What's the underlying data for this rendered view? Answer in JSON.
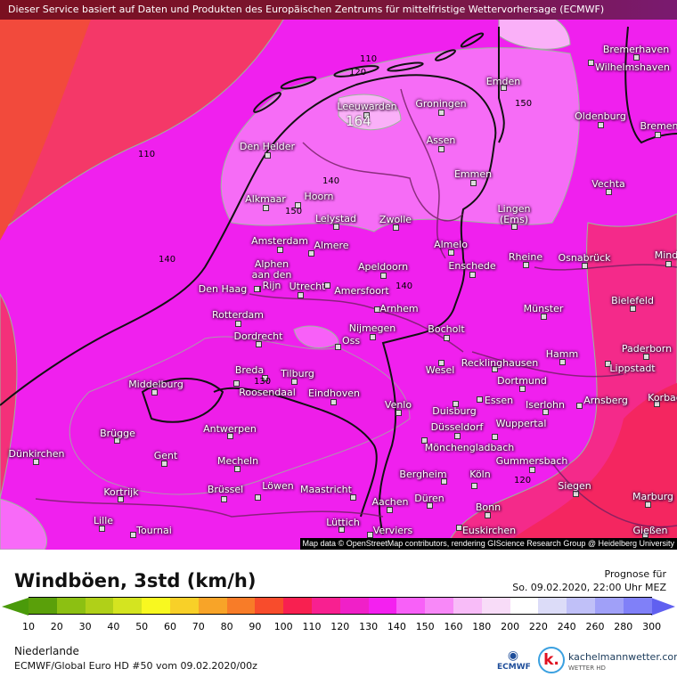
{
  "banner": "Dieser Service basiert auf Daten und Produkten des Europäischen Zentrums für mittelfristige Wettervorhersage (ECMWF)",
  "map": {
    "credit": "Map data © OpenStreetMap contributors, rendering GIScience Research Group @ Heidelberg University",
    "max_label": "164",
    "cities": [
      "Bremerhaven",
      "Wilhelmshaven",
      "Emden",
      "Leeuwarden",
      "Groningen",
      "Den Helder",
      "Oldenburg",
      "Bremen",
      "Assen",
      "Emmen",
      "Vechta",
      "Alkmaar",
      "Hoorn",
      "Lelystad",
      "Zwolle",
      "Lingen\n(Ems)",
      "Amsterdam",
      "Almere",
      "Almelo",
      "Enschede",
      "Rheine",
      "Osnabrück",
      "Mind",
      "Alphen\naan den\nRijn",
      "Utrecht",
      "Amersfoort",
      "Apeldoorn",
      "Den Haag",
      "Arnhem",
      "Münster",
      "Bielefeld",
      "Rotterdam",
      "Nijmegen",
      "Bocholt",
      "Dordrecht",
      "Oss",
      "Hamm",
      "Paderborn",
      "Recklinghausen",
      "Wesel",
      "Lippstadt",
      "Breda",
      "Tilburg",
      "Middelburg",
      "Roosendaal",
      "Dortmund",
      "Eindhoven",
      "Venlo",
      "Essen",
      "Duisburg",
      "Iserlohn",
      "Arnsberg",
      "Korbac",
      "Antwerpen",
      "Brügge",
      "Düsseldorf",
      "Wuppertal",
      "Mönchengladbach",
      "Dünkirchen",
      "Gent",
      "Mecheln",
      "Gummersbach",
      "Bergheim",
      "Köln",
      "Kortrijk",
      "Brüssel",
      "Löwen",
      "Maastricht",
      "Siegen",
      "Aachen",
      "Düren",
      "Marburg",
      "Bonn",
      "Lille",
      "Tournai",
      "Lüttich",
      "Verviers",
      "Euskirchen",
      "Gießen"
    ],
    "contour_labels": [
      "110",
      "110",
      "120",
      "150",
      "140",
      "150",
      "140",
      "140",
      "130",
      "120"
    ]
  },
  "title": "Windböen, 3std (km/h)",
  "forecast": {
    "label": "Prognose für",
    "datetime": "So. 09.02.2020, 22:00 Uhr MEZ"
  },
  "legend": {
    "colors": [
      "#5aa00a",
      "#8cc012",
      "#b0d018",
      "#d4e420",
      "#f8f820",
      "#f8d028",
      "#f8a428",
      "#f87c28",
      "#f84c2c",
      "#f82050",
      "#f82090",
      "#f020c8",
      "#f420f0",
      "#f860f8",
      "#f888f8",
      "#f8bcf8",
      "#f8dcf8",
      "#ffffff",
      "#dcdcf8",
      "#c0c0f8",
      "#a0a0f8",
      "#8080f8"
    ],
    "below_color": "#4a9a0a",
    "above_color": "#6060f0",
    "ticks": [
      "10",
      "20",
      "30",
      "40",
      "50",
      "60",
      "70",
      "80",
      "90",
      "100",
      "110",
      "120",
      "130",
      "140",
      "150",
      "160",
      "180",
      "200",
      "220",
      "240",
      "260",
      "280",
      "300"
    ]
  },
  "region": "Niederlande",
  "model": "ECMWF/Global Euro HD #50 vom  09.02.2020/00z",
  "logos": {
    "ecmwf": "ECMWF",
    "kachelmann": "kachelmannwetter.com",
    "kachelmann_sub": "WETTER HD",
    "k": "k."
  }
}
